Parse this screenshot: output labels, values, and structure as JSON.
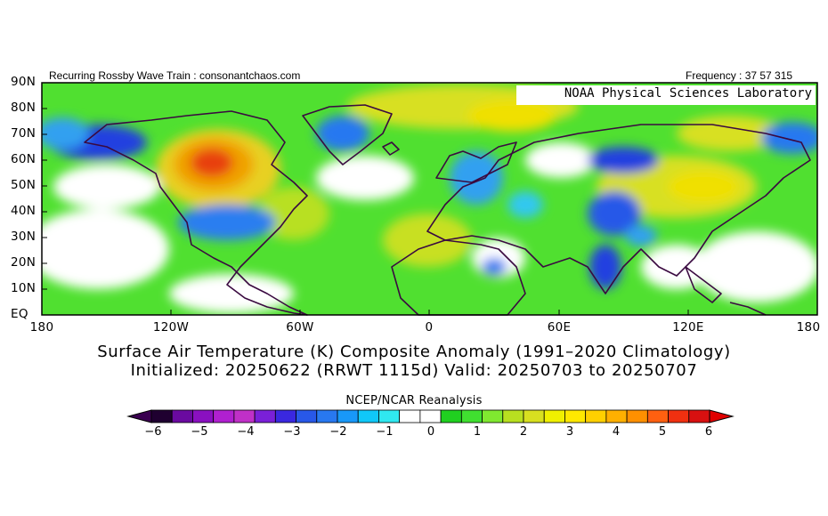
{
  "header": {
    "left": "Recurring Rossby Wave Train : consonantchaos.com",
    "right": "Frequency : 37 57 315"
  },
  "map": {
    "credit": "NOAA Physical Sciences Laboratory",
    "lat_labels": [
      "90N",
      "80N",
      "70N",
      "60N",
      "50N",
      "40N",
      "30N",
      "20N",
      "10N",
      "EQ"
    ],
    "lon_labels": [
      "180",
      "120W",
      "60W",
      "0",
      "60E",
      "120E",
      "180"
    ]
  },
  "title": {
    "line1": "Surface Air Temperature (K) Composite Anomaly (1991–2020 Climatology)",
    "line2": "Initialized: 20250622 (RRWT 1115d) Valid: 20250703 to 20250707"
  },
  "colorbar": {
    "label": "NCEP/NCAR Reanalysis",
    "ticks": [
      "−6",
      "−5",
      "−4",
      "−3",
      "−2",
      "−1",
      "0",
      "1",
      "2",
      "3",
      "4",
      "5",
      "6"
    ],
    "colors": [
      "#1f0030",
      "#6a0aa0",
      "#8a10c0",
      "#b020d0",
      "#c030c8",
      "#7a20d8",
      "#3a28e0",
      "#2858e8",
      "#2878f0",
      "#1898f8",
      "#10c8f8",
      "#30e8f0",
      "#ffffff",
      "#ffffff",
      "#20d020",
      "#40e030",
      "#80e830",
      "#b8e020",
      "#d8e020",
      "#f0f000",
      "#ffe800",
      "#ffd000",
      "#ffb000",
      "#ff9000",
      "#ff6010",
      "#f03010",
      "#d81010"
    ],
    "under_color": "#3a0050",
    "over_color": "#e00000"
  }
}
